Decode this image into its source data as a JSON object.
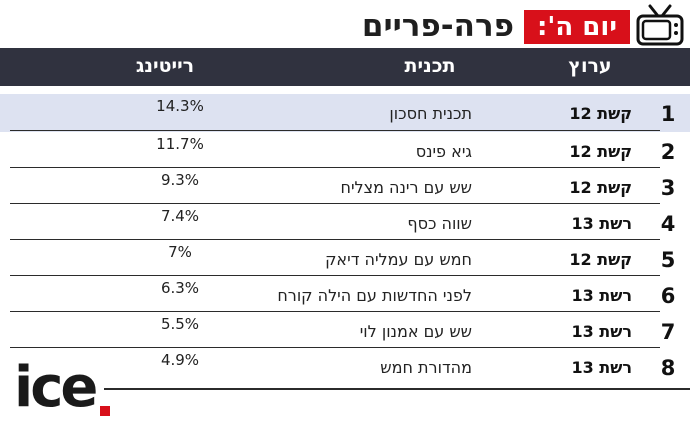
{
  "title": "פרה-פריים",
  "badge": "יום ה':",
  "headers": {
    "channel": "ערוץ",
    "program": "תכנית",
    "rating": "רייטינג"
  },
  "rows": [
    {
      "rank": "1",
      "channel": "קשת 12",
      "program": "תכנית חסכון",
      "rating": "14.3%"
    },
    {
      "rank": "2",
      "channel": "קשת 12",
      "program": "גיא פינס",
      "rating": "11.7%"
    },
    {
      "rank": "3",
      "channel": "קשת 12",
      "program": "שש עם רינה מצליח",
      "rating": "9.3%"
    },
    {
      "rank": "4",
      "channel": "רשת 13",
      "program": "שווה כסף",
      "rating": "7.4%"
    },
    {
      "rank": "5",
      "channel": "קשת 12",
      "program": "חמש עם עמליה דיאק",
      "rating": "7%"
    },
    {
      "rank": "6",
      "channel": "רשת 13",
      "program": "לפני החדשות עם הילה קורח",
      "rating": "6.3%"
    },
    {
      "rank": "7",
      "channel": "רשת 13",
      "program": "שש עם אמנון לוי",
      "rating": "5.5%"
    },
    {
      "rank": "8",
      "channel": "רשת 13",
      "program": "מהדורת חמש",
      "rating": "4.9%"
    }
  ],
  "logo": "ice",
  "colors": {
    "accent": "#d8101a",
    "header_bg": "#30323f",
    "highlight": "#dde2f1"
  }
}
